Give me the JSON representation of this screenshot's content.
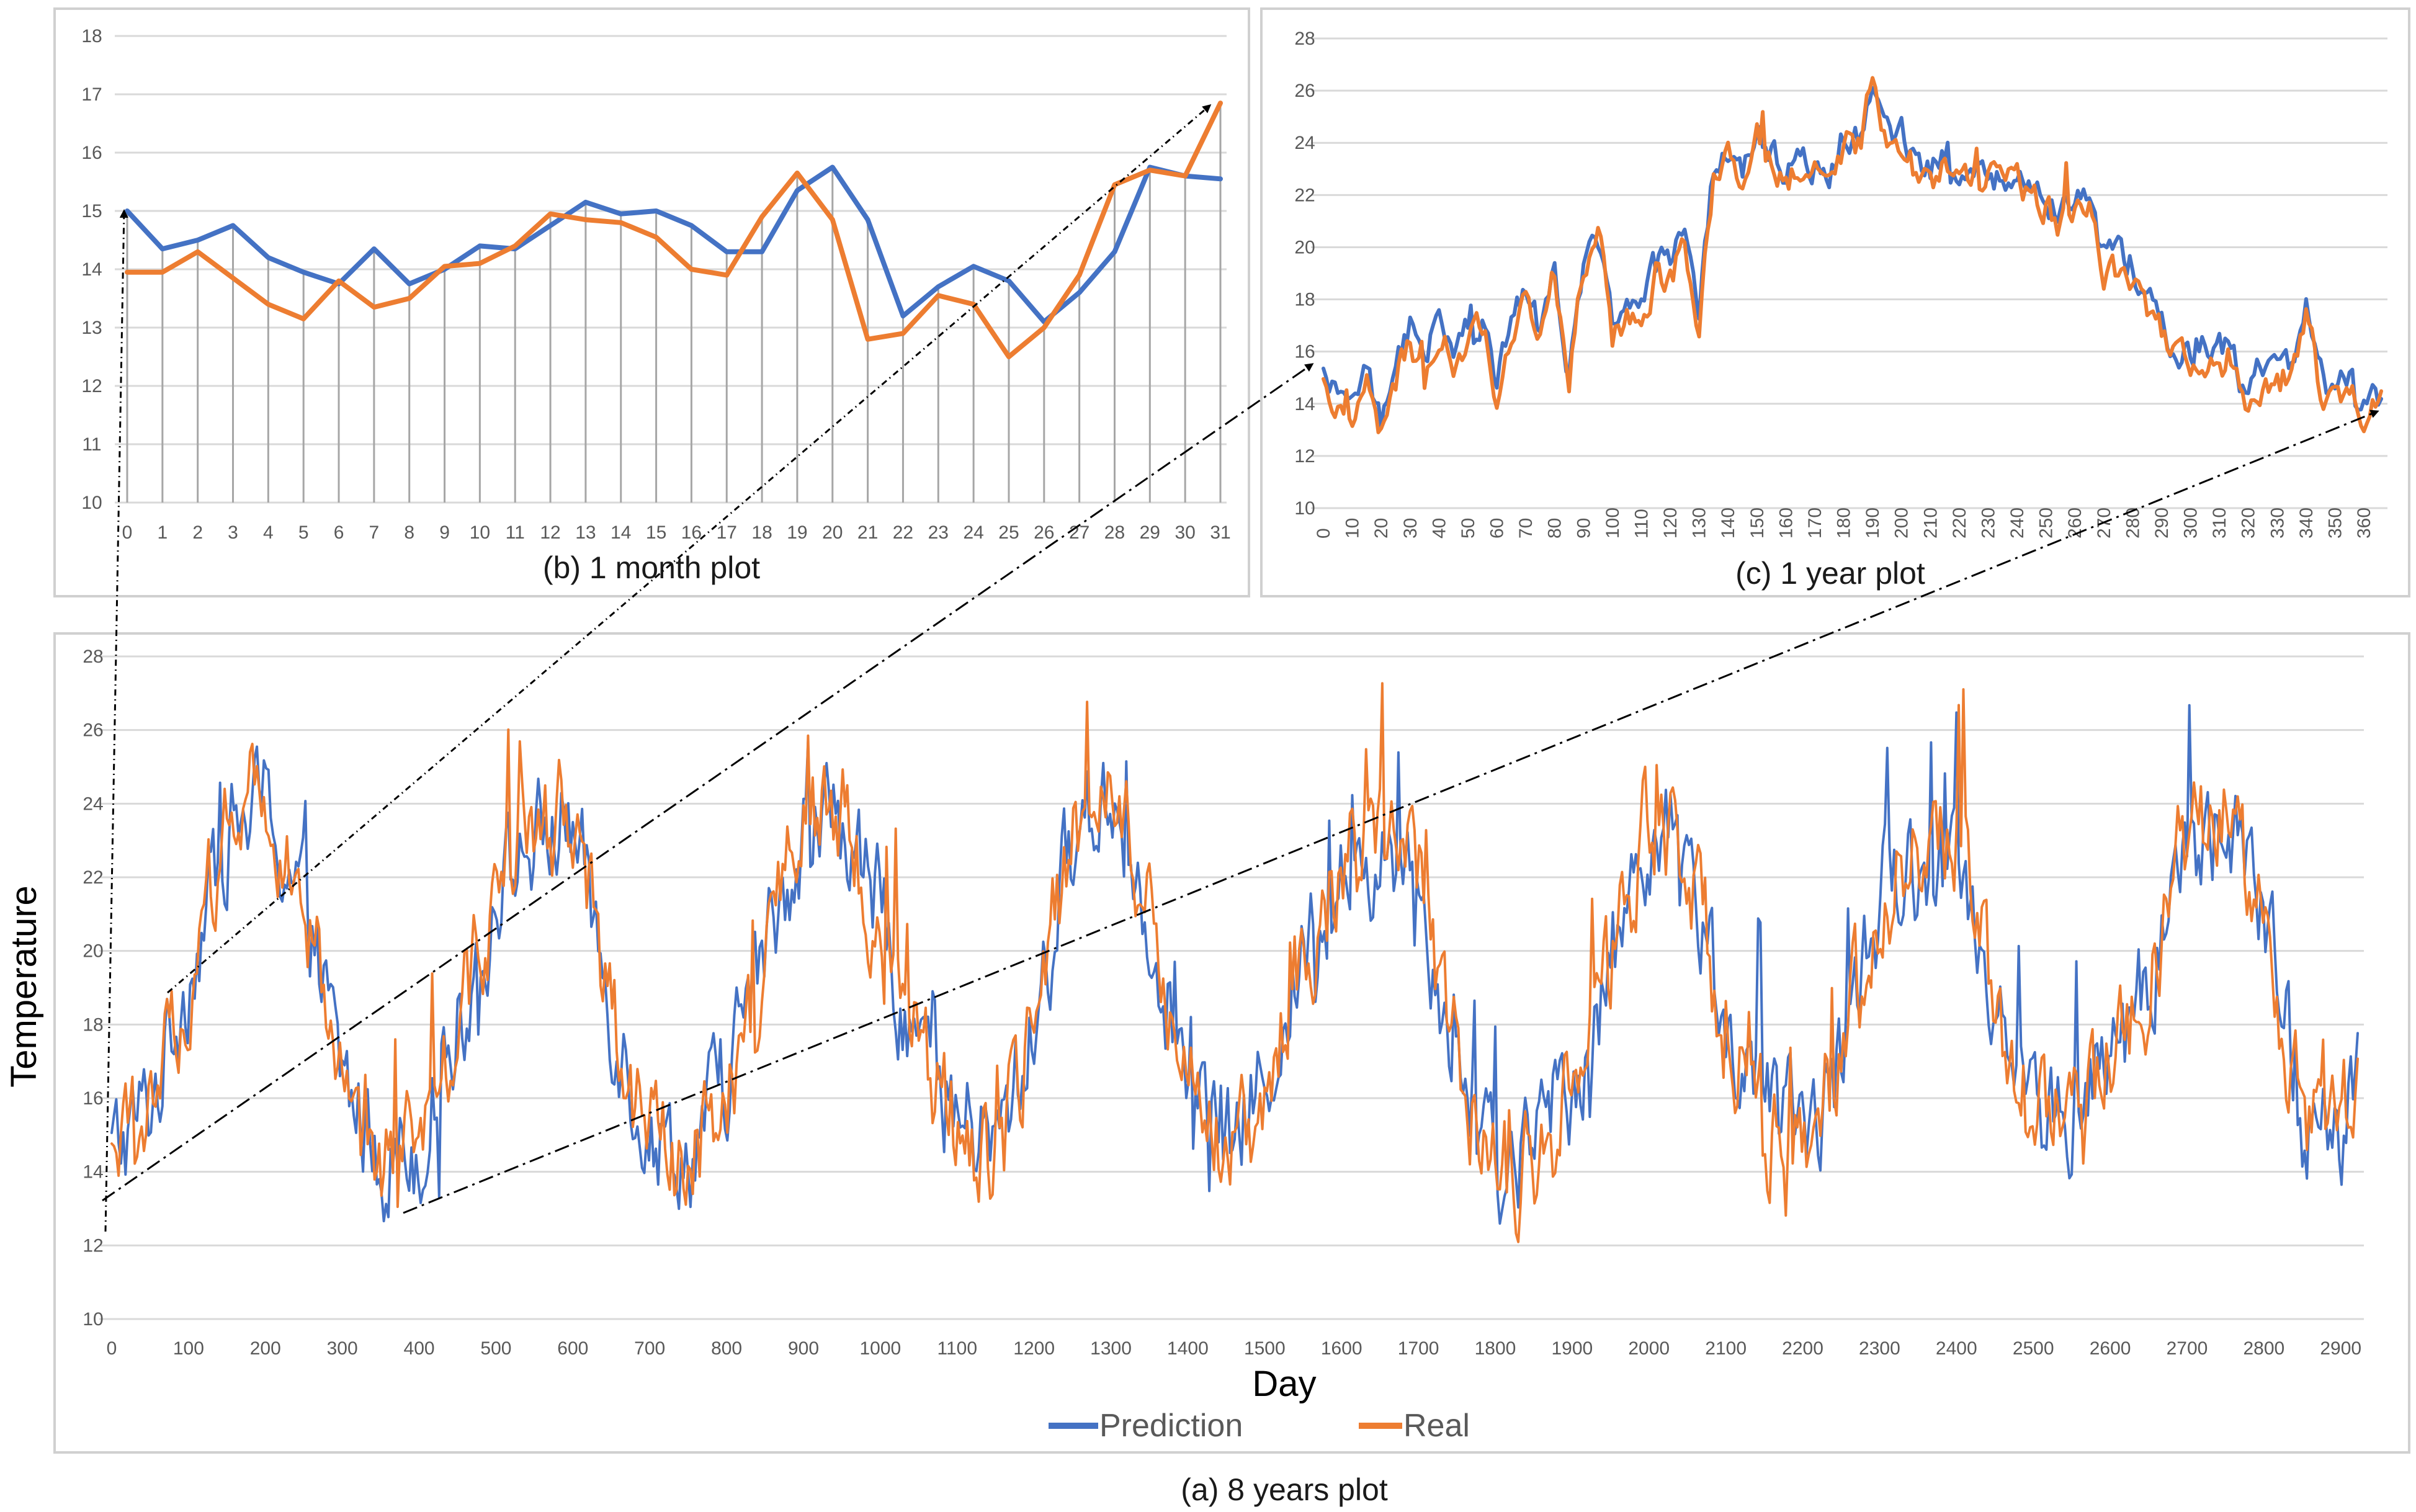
{
  "colors": {
    "prediction": "#4472C4",
    "real": "#ED7D31",
    "grid": "#D9D9D9",
    "frame": "#D0D0D0",
    "dropline": "#A6A6A6"
  },
  "chart_data": [
    {
      "id": "month",
      "type": "line",
      "title": "(b) 1 month plot",
      "xlabel": "",
      "ylabel": "",
      "ylim": [
        10,
        18
      ],
      "yticks": [
        10,
        11,
        12,
        13,
        14,
        15,
        16,
        17,
        18
      ],
      "xlim": [
        0,
        31
      ],
      "xticks": [
        0,
        1,
        2,
        3,
        4,
        5,
        6,
        7,
        8,
        9,
        10,
        11,
        12,
        13,
        14,
        15,
        16,
        17,
        18,
        19,
        20,
        21,
        22,
        23,
        24,
        25,
        26,
        27,
        28,
        29,
        30,
        31
      ],
      "drop_lines": true,
      "series": [
        {
          "name": "Prediction",
          "x": [
            0,
            1,
            2,
            3,
            4,
            5,
            6,
            7,
            8,
            9,
            10,
            11,
            12,
            13,
            14,
            15,
            16,
            17,
            18,
            19,
            20,
            21,
            22,
            23,
            24,
            25,
            26,
            27,
            28,
            29,
            30,
            31
          ],
          "values": [
            15.0,
            14.35,
            14.5,
            14.75,
            14.2,
            13.95,
            13.75,
            14.35,
            13.75,
            14.0,
            14.4,
            14.35,
            14.75,
            15.15,
            14.95,
            15.0,
            14.75,
            14.3,
            14.3,
            15.35,
            15.75,
            14.85,
            13.2,
            13.7,
            14.05,
            13.8,
            13.1,
            13.6,
            14.3,
            15.75,
            15.6,
            15.55
          ]
        },
        {
          "name": "Real",
          "x": [
            0,
            1,
            2,
            3,
            4,
            5,
            6,
            7,
            8,
            9,
            10,
            11,
            12,
            13,
            14,
            15,
            16,
            17,
            18,
            19,
            20,
            21,
            22,
            23,
            24,
            25,
            26,
            27,
            28,
            29,
            30,
            31
          ],
          "values": [
            13.95,
            13.95,
            14.3,
            13.85,
            13.4,
            13.15,
            13.8,
            13.35,
            13.5,
            14.05,
            14.1,
            14.4,
            14.95,
            14.85,
            14.8,
            14.55,
            14.0,
            13.9,
            14.9,
            15.65,
            14.85,
            12.8,
            12.9,
            13.55,
            13.4,
            12.5,
            13.0,
            13.9,
            15.45,
            15.7,
            15.6,
            16.85
          ]
        }
      ]
    },
    {
      "id": "year",
      "type": "line",
      "title": "(c) 1 year plot",
      "xlabel": "",
      "ylabel": "",
      "ylim": [
        10,
        28
      ],
      "yticks": [
        10,
        12,
        14,
        16,
        18,
        20,
        22,
        24,
        26,
        28
      ],
      "xlim": [
        0,
        366
      ],
      "xticks": [
        0,
        10,
        20,
        30,
        40,
        50,
        60,
        70,
        80,
        90,
        100,
        110,
        120,
        130,
        140,
        150,
        160,
        170,
        180,
        190,
        200,
        210,
        220,
        230,
        240,
        250,
        260,
        270,
        280,
        290,
        300,
        310,
        320,
        330,
        340,
        350,
        360
      ],
      "series": [
        {
          "name": "Prediction",
          "x": [
            0,
            5,
            10,
            15,
            20,
            25,
            30,
            35,
            40,
            45,
            50,
            55,
            60,
            65,
            70,
            75,
            80,
            85,
            90,
            95,
            100,
            105,
            110,
            115,
            120,
            125,
            130,
            135,
            140,
            145,
            150,
            155,
            160,
            165,
            170,
            175,
            180,
            185,
            190,
            195,
            200,
            205,
            210,
            215,
            220,
            225,
            230,
            235,
            240,
            245,
            250,
            255,
            260,
            265,
            270,
            275,
            280,
            285,
            290,
            295,
            300,
            305,
            310,
            315,
            320,
            325,
            330,
            335,
            340,
            345,
            350,
            355,
            360,
            366
          ],
          "values": [
            14.9,
            14.4,
            14.0,
            15.3,
            13.3,
            15.5,
            16.9,
            15.5,
            17.4,
            15.9,
            16.8,
            17.5,
            14.6,
            17.2,
            18.6,
            17.3,
            19.5,
            15.3,
            19.6,
            20.3,
            16.8,
            17.8,
            17.3,
            19.4,
            19.0,
            20.8,
            17.6,
            23.1,
            23.6,
            22.5,
            24.5,
            23.6,
            23.0,
            23.2,
            23.2,
            22.6,
            24.3,
            24.3,
            25.9,
            24.6,
            24.3,
            22.9,
            23.0,
            23.4,
            22.6,
            23.0,
            23.1,
            22.5,
            23.0,
            22.1,
            22.0,
            21.2,
            21.6,
            21.6,
            19.6,
            19.5,
            19.4,
            17.6,
            17.2,
            16.1,
            15.9,
            16.1,
            16.3,
            15.8,
            13.9,
            15.5,
            15.2,
            15.5,
            17.7,
            15.0,
            14.4,
            14.8,
            13.9,
            14.3
          ]
        },
        {
          "name": "Real",
          "x": [
            0,
            5,
            10,
            15,
            20,
            25,
            30,
            35,
            40,
            45,
            50,
            55,
            60,
            65,
            70,
            75,
            80,
            85,
            90,
            95,
            100,
            105,
            110,
            115,
            120,
            125,
            130,
            135,
            140,
            145,
            150,
            155,
            160,
            165,
            170,
            175,
            180,
            185,
            190,
            195,
            200,
            205,
            210,
            215,
            220,
            225,
            230,
            235,
            240,
            245,
            250,
            255,
            260,
            265,
            270,
            275,
            280,
            285,
            290,
            295,
            300,
            305,
            310,
            315,
            320,
            325,
            330,
            335,
            340,
            345,
            350,
            355,
            360,
            366
          ],
          "values": [
            14.5,
            14.0,
            13.6,
            14.9,
            12.9,
            15.1,
            16.5,
            15.1,
            17.0,
            15.5,
            16.4,
            17.1,
            14.2,
            16.8,
            18.2,
            16.9,
            19.1,
            14.9,
            19.2,
            20.8,
            16.4,
            17.4,
            16.9,
            19.0,
            18.6,
            20.4,
            17.2,
            22.7,
            23.2,
            22.1,
            24.9,
            23.2,
            22.6,
            22.8,
            22.8,
            22.2,
            23.9,
            23.9,
            26.8,
            24.2,
            23.9,
            22.5,
            22.6,
            23.0,
            22.2,
            22.6,
            22.7,
            22.1,
            22.6,
            21.7,
            21.6,
            20.8,
            21.2,
            21.2,
            19.2,
            19.1,
            19.0,
            17.2,
            16.8,
            15.7,
            15.5,
            15.7,
            15.9,
            15.4,
            13.5,
            15.1,
            14.8,
            15.1,
            17.3,
            14.6,
            14.0,
            14.4,
            13.5,
            13.9
          ]
        }
      ]
    },
    {
      "id": "years",
      "type": "line",
      "title": "(a) 8 years plot",
      "xlabel": "Day",
      "ylabel": "Temperature",
      "ylim": [
        10,
        28
      ],
      "yticks": [
        10,
        12,
        14,
        16,
        18,
        20,
        22,
        24,
        26,
        28
      ],
      "xlim": [
        0,
        2922
      ],
      "xticks": [
        0,
        100,
        200,
        300,
        400,
        500,
        600,
        700,
        800,
        900,
        1000,
        1100,
        1200,
        1300,
        1400,
        1500,
        1600,
        1700,
        1800,
        1900,
        2000,
        2100,
        2200,
        2300,
        2400,
        2500,
        2600,
        2700,
        2800,
        2900
      ],
      "legend": {
        "position": "bottom-center",
        "entries": [
          "Prediction",
          "Real"
        ]
      },
      "series": [
        {
          "name": "Prediction",
          "x": [
            0,
            50,
            100,
            150,
            200,
            250,
            300,
            350,
            400,
            450,
            500,
            550,
            600,
            650,
            700,
            750,
            800,
            850,
            900,
            950,
            1000,
            1050,
            1100,
            1150,
            1200,
            1250,
            1300,
            1350,
            1400,
            1450,
            1500,
            1550,
            1600,
            1650,
            1700,
            1750,
            1800,
            1850,
            1900,
            1950,
            2000,
            2050,
            2100,
            2150,
            2200,
            2250,
            2300,
            2350,
            2400,
            2450,
            2500,
            2550,
            2600,
            2650,
            2700,
            2750,
            2800,
            2850,
            2900,
            2922
          ],
          "values": [
            14.5,
            15.8,
            19.5,
            23.2,
            24.0,
            21.2,
            16.5,
            14.5,
            14.8,
            18.0,
            21.5,
            23.0,
            23.5,
            18.5,
            15.0,
            14.5,
            16.5,
            20.0,
            23.5,
            23.5,
            21.0,
            17.5,
            15.5,
            14.5,
            18.0,
            23.0,
            24.5,
            21.0,
            16.5,
            14.5,
            16.5,
            20.0,
            22.0,
            22.5,
            22.0,
            17.0,
            14.0,
            14.5,
            16.5,
            19.5,
            23.5,
            22.5,
            18.0,
            15.5,
            15.0,
            17.0,
            21.5,
            22.5,
            22.5,
            19.0,
            15.5,
            15.5,
            17.0,
            19.0,
            23.0,
            23.5,
            21.0,
            15.5,
            15.0,
            16.8
          ]
        },
        {
          "name": "Real",
          "x": [
            0,
            50,
            100,
            150,
            200,
            250,
            300,
            350,
            400,
            450,
            500,
            550,
            600,
            650,
            700,
            750,
            800,
            850,
            900,
            950,
            1000,
            1050,
            1100,
            1150,
            1200,
            1250,
            1300,
            1350,
            1400,
            1450,
            1500,
            1550,
            1600,
            1650,
            1700,
            1750,
            1800,
            1850,
            1900,
            1950,
            2000,
            2050,
            2100,
            2150,
            2200,
            2250,
            2300,
            2350,
            2400,
            2450,
            2500,
            2550,
            2600,
            2650,
            2700,
            2750,
            2800,
            2850,
            2900,
            2922
          ],
          "values": [
            14.2,
            15.5,
            19.2,
            23.5,
            24.5,
            21.0,
            16.2,
            14.2,
            14.5,
            17.8,
            21.8,
            23.2,
            23.8,
            18.2,
            14.8,
            14.2,
            16.2,
            19.8,
            23.8,
            23.8,
            20.8,
            17.2,
            15.2,
            14.2,
            17.8,
            23.2,
            24.8,
            20.8,
            16.2,
            14.2,
            16.2,
            19.8,
            22.2,
            22.8,
            22.2,
            16.8,
            13.8,
            14.2,
            16.2,
            19.2,
            23.8,
            22.8,
            17.8,
            15.2,
            14.8,
            16.8,
            21.8,
            22.8,
            22.8,
            18.8,
            15.2,
            15.2,
            16.8,
            18.8,
            23.2,
            23.8,
            20.8,
            15.2,
            14.8,
            16.9
          ]
        }
      ]
    }
  ]
}
